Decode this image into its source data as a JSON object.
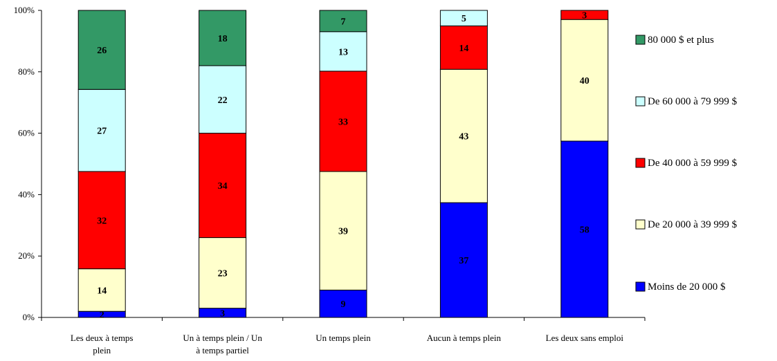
{
  "chart_data": {
    "type": "bar",
    "stacked": true,
    "percent": true,
    "categories": [
      [
        "Les deux à temps",
        "plein"
      ],
      [
        "Un à temps plein / Un",
        "à temps partiel"
      ],
      [
        "Un temps plein"
      ],
      [
        "Aucun à temps plein"
      ],
      [
        "Les deux sans emploi"
      ]
    ],
    "series": [
      {
        "name": "Moins de 20 000 $",
        "color": "#0000ff",
        "values": [
          2,
          3,
          9,
          37,
          58
        ]
      },
      {
        "name": "De 20 000 à 39 999 $",
        "color": "#ffffcc",
        "values": [
          14,
          23,
          39,
          43,
          40
        ]
      },
      {
        "name": "De 40 000 à 59 999 $",
        "color": "#ff0000",
        "values": [
          32,
          34,
          33,
          14,
          3
        ]
      },
      {
        "name": "De 60 000 à 79 999 $",
        "color": "#ccffff",
        "values": [
          27,
          22,
          13,
          5,
          0
        ]
      },
      {
        "name": "80 000 $ et plus",
        "color": "#339966",
        "values": [
          26,
          18,
          7,
          0,
          0
        ]
      }
    ],
    "legend_order": [
      4,
      3,
      2,
      1,
      0
    ],
    "yticks": [
      "0%",
      "20%",
      "40%",
      "60%",
      "80%",
      "100%"
    ],
    "ylim": [
      0,
      100
    ],
    "legend_position": "right",
    "grid": false,
    "title": "",
    "xlabel": "",
    "ylabel": ""
  }
}
